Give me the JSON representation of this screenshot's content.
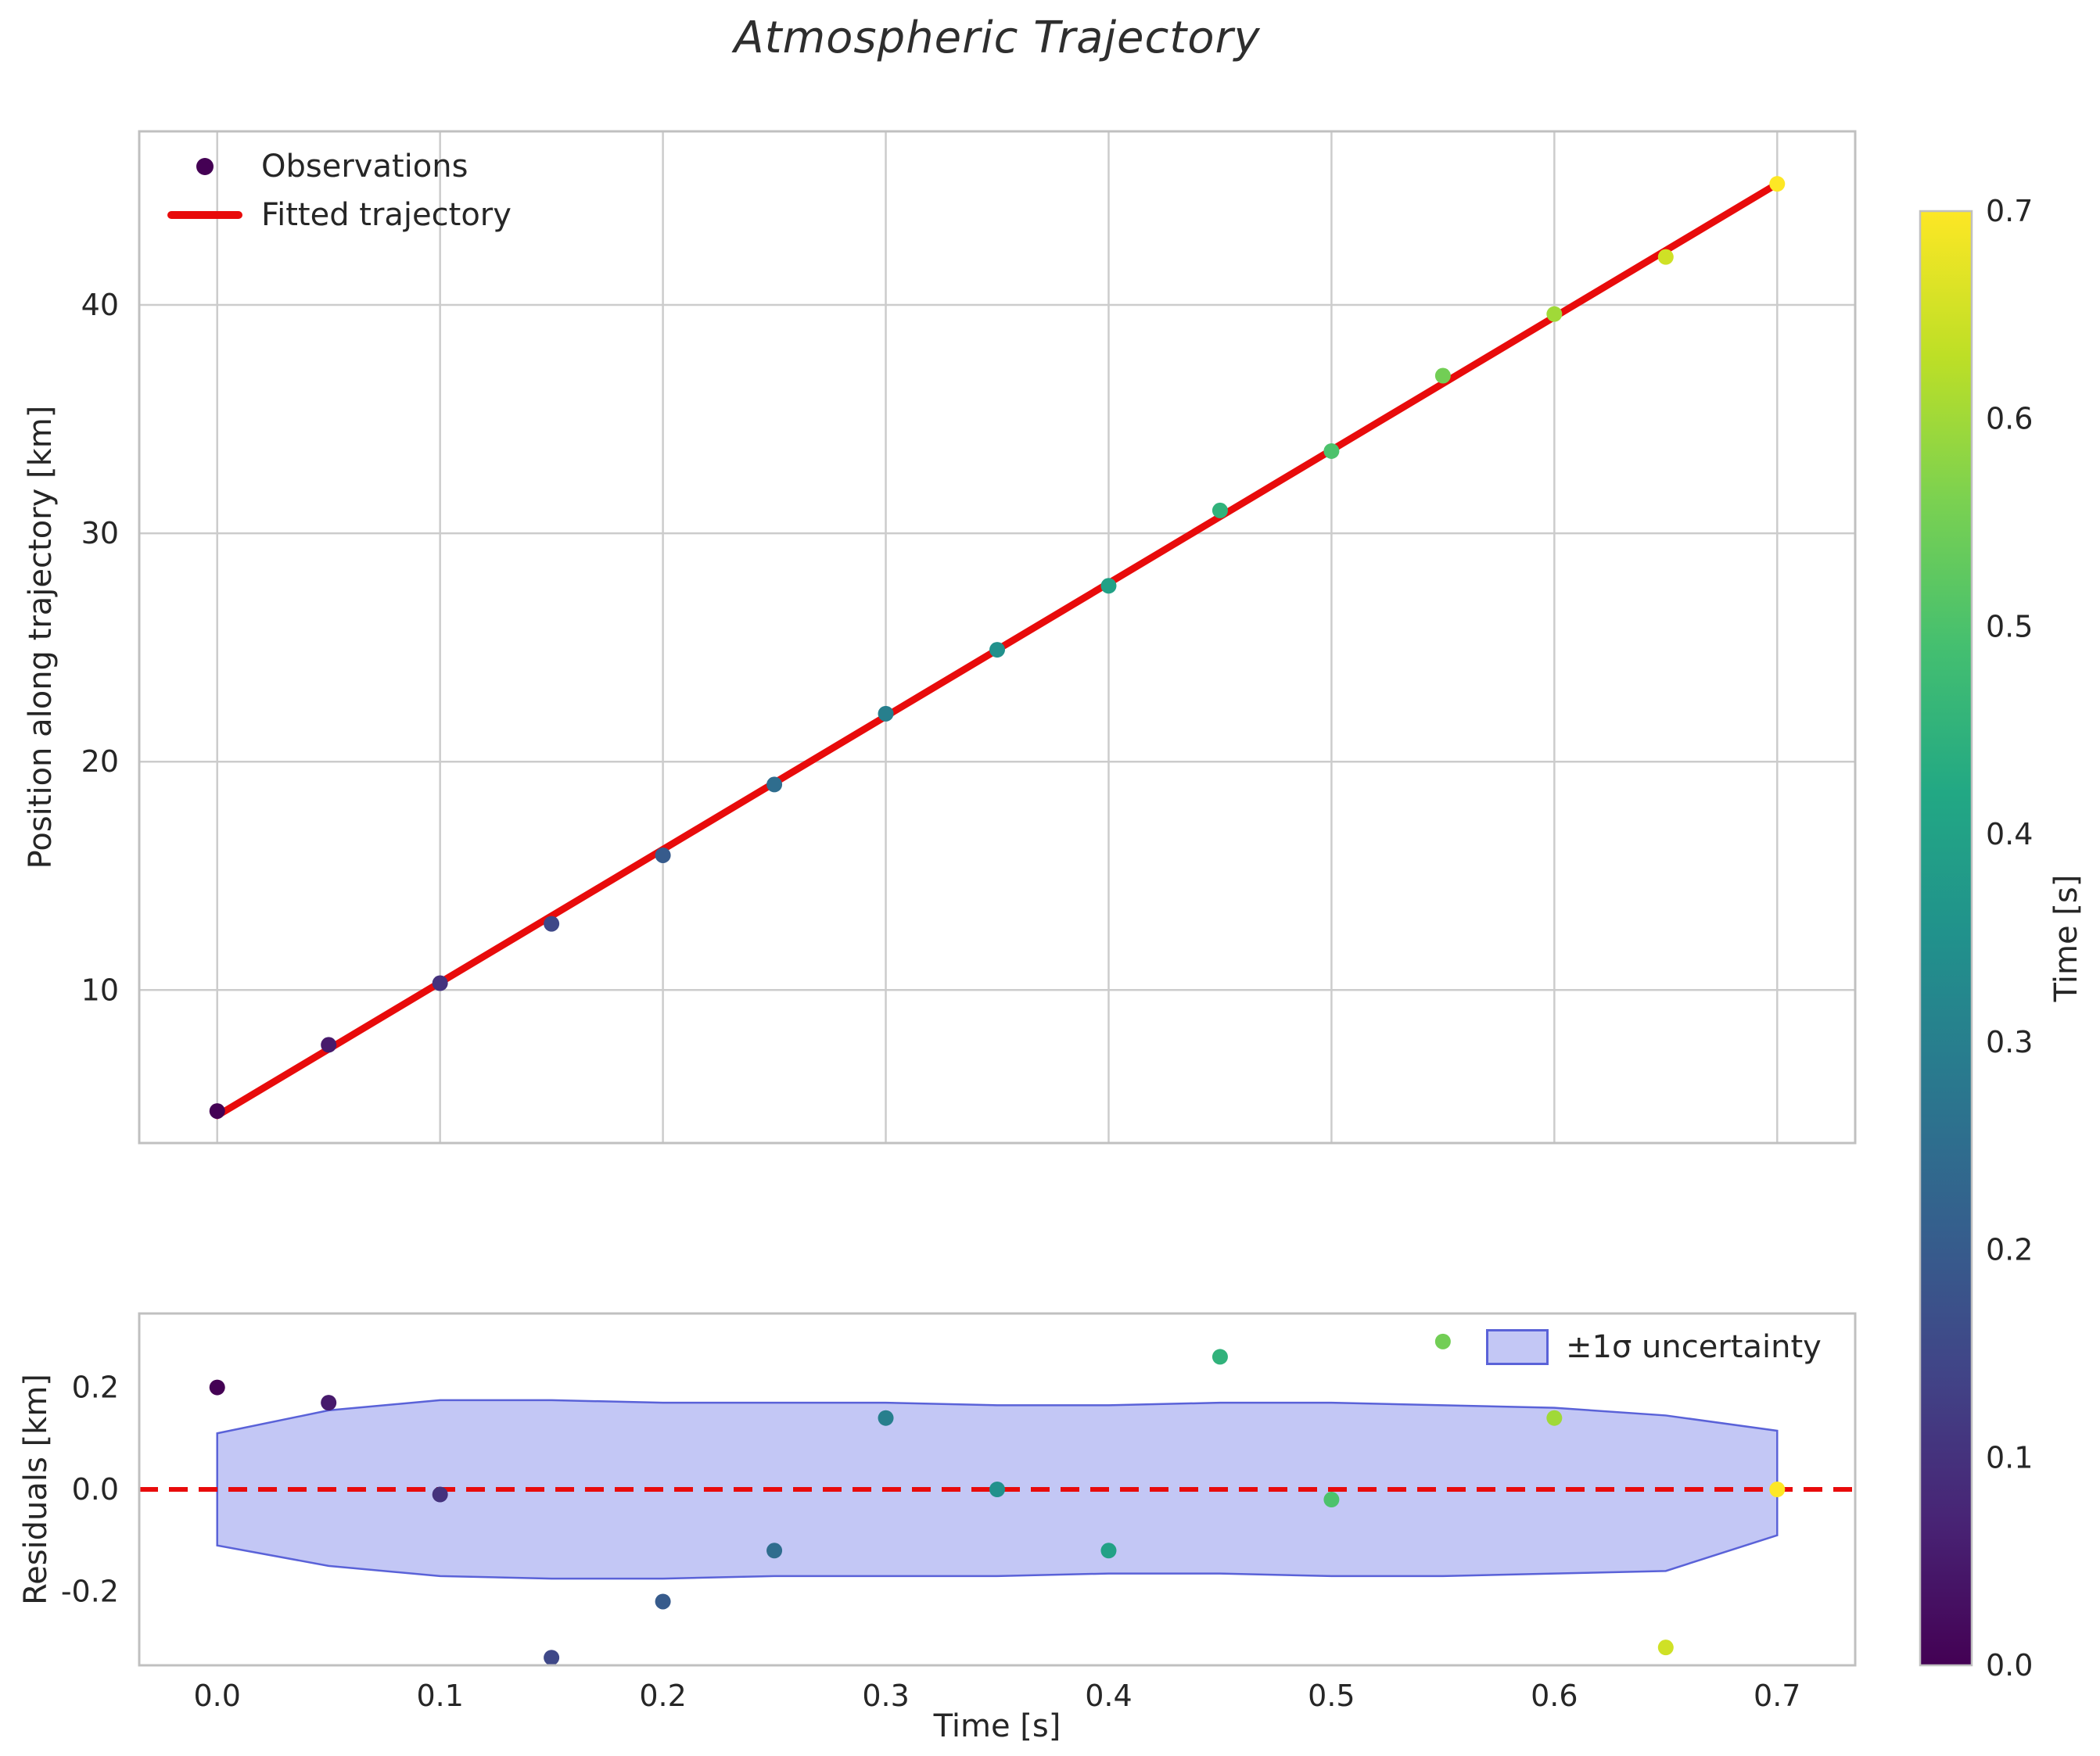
{
  "title": "Atmospheric Trajectory",
  "colors": {
    "fit_line": "#e80b0b",
    "zero_line": "#e80b0b",
    "band_fill": "#8890ec",
    "band_edge": "#5a62d8",
    "grid": "#cccccc",
    "frame": "#c0c0c0",
    "text": "#262626",
    "first_point": "#440154"
  },
  "chart_data": [
    {
      "type": "scatter",
      "title": "Atmospheric Trajectory",
      "ylabel": "Position along trajectory [km]",
      "legend": [
        "Observations",
        "Fitted trajectory"
      ],
      "x": [
        0.0,
        0.05,
        0.1,
        0.15,
        0.2,
        0.25,
        0.3,
        0.35,
        0.4,
        0.45,
        0.5,
        0.55,
        0.6,
        0.65,
        0.7
      ],
      "observations": [
        4.7,
        7.6,
        10.3,
        12.9,
        15.9,
        19.0,
        22.1,
        24.9,
        27.7,
        31.0,
        33.6,
        36.9,
        39.6,
        42.1,
        45.3
      ],
      "fit": {
        "x0": 0.0,
        "y0": 4.5,
        "x1": 0.7,
        "y1": 45.3
      },
      "xlim": [
        -0.035,
        0.735
      ],
      "ylim": [
        3.3,
        47.6
      ],
      "xticks": [
        0.0,
        0.1,
        0.2,
        0.3,
        0.4,
        0.5,
        0.6,
        0.7
      ],
      "yticks": [
        10,
        20,
        30,
        40
      ],
      "grid": true,
      "legend_position": "upper left",
      "color_by": "time"
    },
    {
      "type": "residuals",
      "ylabel": "Residuals [km]",
      "xlabel": "Time [s]",
      "legend": [
        "±1σ uncertainty"
      ],
      "x": [
        0.0,
        0.05,
        0.1,
        0.15,
        0.2,
        0.25,
        0.3,
        0.35,
        0.4,
        0.45,
        0.5,
        0.55,
        0.6,
        0.65,
        0.7
      ],
      "residuals": [
        0.2,
        0.17,
        -0.01,
        -0.33,
        -0.22,
        -0.12,
        0.14,
        0.0,
        -0.12,
        0.26,
        -0.02,
        0.29,
        0.14,
        -0.31,
        0.0
      ],
      "band_upper": [
        0.11,
        0.155,
        0.175,
        0.175,
        0.17,
        0.17,
        0.17,
        0.165,
        0.165,
        0.17,
        0.17,
        0.165,
        0.16,
        0.145,
        0.115
      ],
      "band_lower": [
        -0.11,
        -0.15,
        -0.17,
        -0.175,
        -0.175,
        -0.17,
        -0.17,
        -0.17,
        -0.165,
        -0.165,
        -0.17,
        -0.17,
        -0.165,
        -0.16,
        -0.09
      ],
      "zero_line": 0.0,
      "xlim": [
        -0.035,
        0.735
      ],
      "ylim": [
        -0.345,
        0.345
      ],
      "xticks": [
        0.0,
        0.1,
        0.2,
        0.3,
        0.4,
        0.5,
        0.6,
        0.7
      ],
      "yticks": [
        -0.2,
        0.0,
        0.2
      ],
      "grid": false,
      "legend_position": "upper right"
    }
  ],
  "colorbar": {
    "label": "Time [s]",
    "min": 0.0,
    "max": 0.7,
    "ticks": [
      0.0,
      0.1,
      0.2,
      0.3,
      0.4,
      0.5,
      0.6,
      0.7
    ],
    "colormap": "viridis",
    "colormap_stops": [
      [
        0.0,
        "#440154"
      ],
      [
        0.1,
        "#482475"
      ],
      [
        0.2,
        "#414487"
      ],
      [
        0.3,
        "#355f8d"
      ],
      [
        0.4,
        "#2a788e"
      ],
      [
        0.5,
        "#21918c"
      ],
      [
        0.6,
        "#22a884"
      ],
      [
        0.7,
        "#44bf70"
      ],
      [
        0.8,
        "#7ad151"
      ],
      [
        0.9,
        "#bddf26"
      ],
      [
        1.0,
        "#fde725"
      ]
    ]
  }
}
